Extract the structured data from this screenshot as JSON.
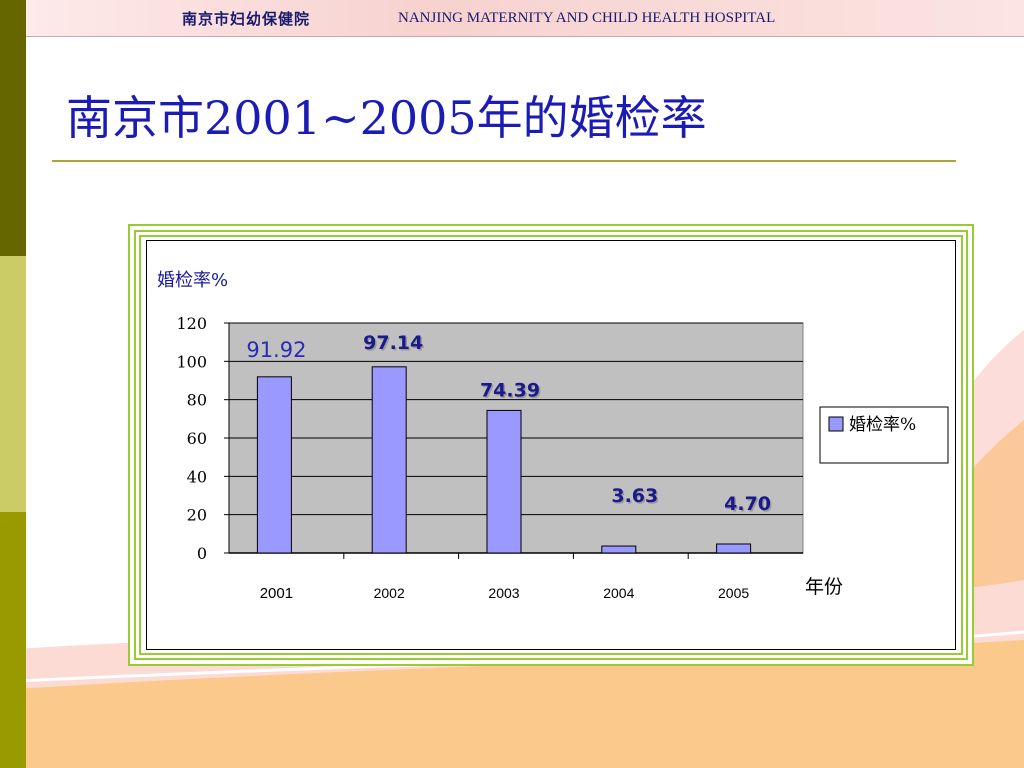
{
  "header": {
    "org_cn": "南京市妇幼保健院",
    "org_en": "NANJING MATERNITY AND CHILD HEALTH HOSPITAL"
  },
  "slide": {
    "title": "南京市2001~2005年的婚检率"
  },
  "colors": {
    "title": "#1b1bb5",
    "bar_fill": "#9999ff",
    "plot_bg": "#c0c0c0",
    "frame": "#99cc33",
    "data_label": "#1a1a8a"
  },
  "chart_data": {
    "type": "bar",
    "categories": [
      "2001",
      "2002",
      "2003",
      "2004",
      "2005"
    ],
    "series": [
      {
        "name": "婚检率%",
        "values": [
          91.92,
          97.14,
          74.39,
          3.63,
          4.7
        ],
        "data_labels": [
          "91.92",
          "97.14",
          "74.39",
          "3.63",
          "4.70"
        ]
      }
    ],
    "ylabel": "婚检率%",
    "xlabel": "年份",
    "ylim": [
      0,
      120
    ],
    "yticks": [
      "0",
      "20",
      "40",
      "60",
      "80",
      "100",
      "120"
    ],
    "grid": true,
    "legend": "right"
  }
}
